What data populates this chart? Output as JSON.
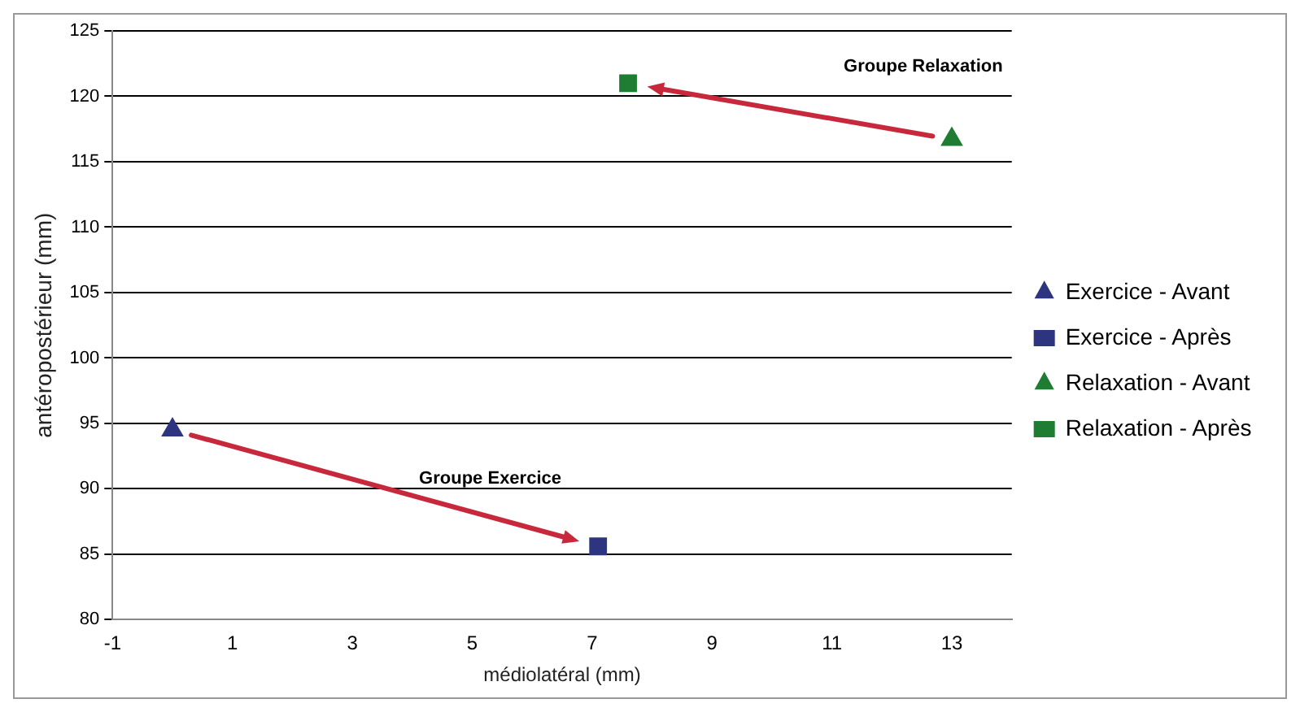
{
  "chart_data": {
    "type": "scatter",
    "xlabel": "médiolatéral (mm)",
    "ylabel": "antéropostérieur (mm)",
    "xlim": [
      -1,
      14
    ],
    "xticks": [
      -1,
      1,
      3,
      5,
      7,
      9,
      11,
      13
    ],
    "ylim": [
      80,
      125
    ],
    "yticks": [
      80,
      85,
      90,
      95,
      100,
      105,
      110,
      115,
      120,
      125
    ],
    "grid": "y",
    "legend": "right",
    "series": [
      {
        "name": "Exercice - Avant",
        "color": "#2e3580",
        "marker": "triangle",
        "x": [
          0
        ],
        "values": [
          94.5
        ]
      },
      {
        "name": "Exercice - Après",
        "color": "#2e3580",
        "marker": "square",
        "x": [
          7.1
        ],
        "values": [
          85.6
        ]
      },
      {
        "name": "Relaxation - Avant",
        "color": "#1e7d32",
        "marker": "triangle",
        "x": [
          13
        ],
        "values": [
          116.7
        ]
      },
      {
        "name": "Relaxation - Après",
        "color": "#1e7d32",
        "marker": "square",
        "x": [
          7.6
        ],
        "values": [
          121
        ]
      }
    ],
    "annotations": [
      "Groupe Exercice",
      "Groupe Relaxation"
    ]
  }
}
